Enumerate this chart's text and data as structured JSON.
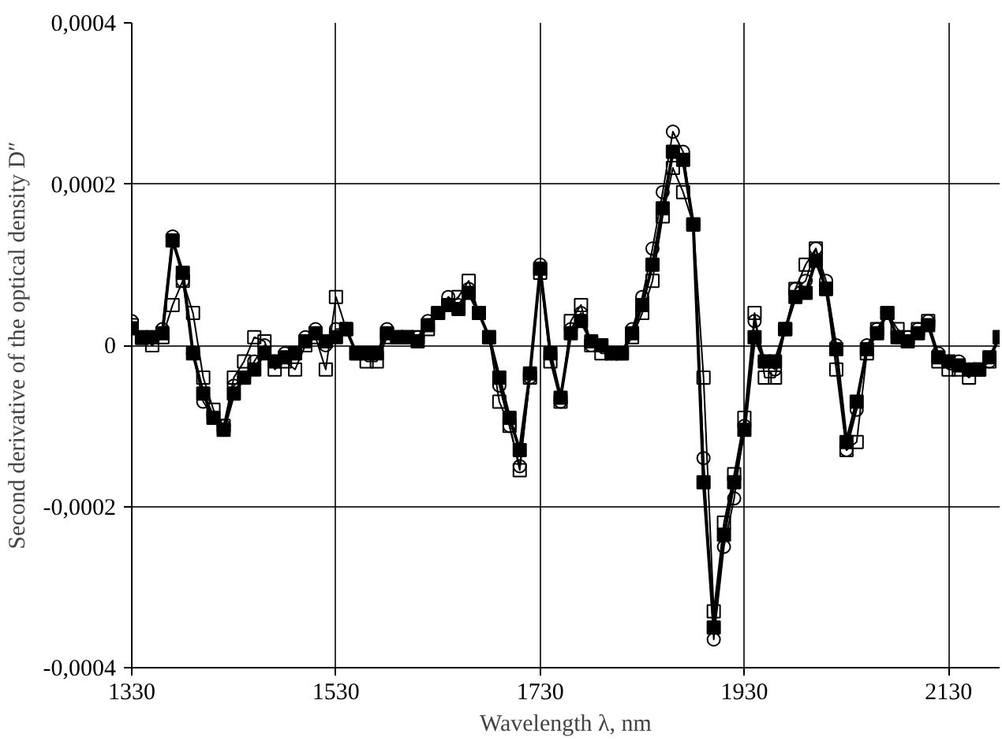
{
  "chart_data": {
    "type": "line",
    "xlabel": "Wavelength λ, nm",
    "ylabel": "Second derivative of the optical density D″",
    "x": [
      1330,
      1340,
      1350,
      1360,
      1370,
      1380,
      1390,
      1400,
      1410,
      1420,
      1430,
      1440,
      1450,
      1460,
      1470,
      1480,
      1490,
      1500,
      1510,
      1520,
      1530,
      1540,
      1550,
      1560,
      1570,
      1580,
      1590,
      1600,
      1610,
      1620,
      1630,
      1640,
      1650,
      1660,
      1670,
      1680,
      1690,
      1700,
      1710,
      1720,
      1730,
      1740,
      1750,
      1760,
      1770,
      1780,
      1790,
      1800,
      1810,
      1820,
      1830,
      1840,
      1850,
      1860,
      1870,
      1880,
      1890,
      1900,
      1910,
      1920,
      1930,
      1940,
      1950,
      1960,
      1970,
      1980,
      1990,
      2000,
      2010,
      2020,
      2030,
      2040,
      2050,
      2060,
      2070,
      2080,
      2090,
      2100,
      2110,
      2120,
      2130,
      2140,
      2150,
      2160,
      2170,
      2180
    ],
    "series": [
      {
        "color": "#000000",
        "marker": "circle",
        "values": [
          3e-05,
          1e-05,
          1e-05,
          2e-05,
          0.000135,
          8e-05,
          -1e-05,
          -7e-05,
          -9e-05,
          -0.0001,
          -5e-05,
          -4e-05,
          -2e-05,
          0.0,
          -2e-05,
          -1e-05,
          -1e-05,
          1e-05,
          2e-05,
          0.0,
          2e-05,
          2e-05,
          -1e-05,
          -1e-05,
          -1e-05,
          2e-05,
          1e-05,
          1e-05,
          1e-05,
          3e-05,
          4e-05,
          6e-05,
          5e-05,
          7e-05,
          4e-05,
          1e-05,
          -5e-05,
          -0.0001,
          -0.00015,
          -4e-05,
          0.0001,
          -1e-05,
          -7e-05,
          2e-05,
          4e-05,
          0.0,
          0.0,
          -1e-05,
          -1e-05,
          2e-05,
          6e-05,
          0.00012,
          0.00019,
          0.000265,
          0.00024,
          0.00015,
          -0.00014,
          -0.000365,
          -0.00025,
          -0.00019,
          -0.0001,
          3e-05,
          -2e-05,
          -3e-05,
          2e-05,
          7e-05,
          8e-05,
          0.00012,
          8e-05,
          0.0,
          -0.00013,
          -8e-05,
          0.0,
          2e-05,
          4e-05,
          1e-05,
          1e-05,
          2e-05,
          3e-05,
          -1e-05,
          -2e-05,
          -2e-05,
          -3e-05,
          -3e-05,
          -2e-05,
          1e-05
        ]
      },
      {
        "color": "#000000",
        "marker": "square",
        "values": [
          2.5e-05,
          1e-05,
          0.0,
          1e-05,
          5e-05,
          8e-05,
          4e-05,
          -4e-05,
          -8e-05,
          -0.0001,
          -4e-05,
          -2e-05,
          1e-05,
          5e-06,
          -3e-05,
          -2e-05,
          -3e-05,
          0.0,
          1e-05,
          -3e-05,
          6e-05,
          2e-05,
          -1e-05,
          -2e-05,
          -2e-05,
          1e-05,
          1e-05,
          1e-05,
          1e-05,
          2e-05,
          4e-05,
          5e-05,
          6e-05,
          8e-05,
          4e-05,
          1e-05,
          -7e-05,
          -0.0001,
          -0.000155,
          -4e-05,
          9e-05,
          -2e-05,
          -7e-05,
          3e-05,
          5e-05,
          0.0,
          -1e-05,
          -1e-05,
          -1e-05,
          1e-05,
          4e-05,
          8e-05,
          0.00016,
          0.00022,
          0.00019,
          0.00015,
          -4e-05,
          -0.00033,
          -0.00022,
          -0.00016,
          -9e-05,
          4e-05,
          -4e-05,
          -4e-05,
          2e-05,
          7e-05,
          0.0001,
          0.00012,
          7e-05,
          -3e-05,
          -0.00013,
          -0.00012,
          -1e-05,
          2e-05,
          4e-05,
          2e-05,
          1e-05,
          2e-05,
          3e-05,
          -2e-05,
          -3e-05,
          -3e-05,
          -4e-05,
          -3e-05,
          -2e-05,
          1e-05
        ]
      },
      {
        "color": "#000000",
        "marker": "square_filled",
        "values": [
          2.1e-05,
          9e-06,
          1e-05,
          1.5e-05,
          0.00013,
          9e-05,
          -1e-05,
          -6e-05,
          -9e-05,
          -0.000105,
          -6e-05,
          -4e-05,
          -3e-05,
          -1e-05,
          -2e-05,
          -1.5e-05,
          -1e-05,
          5e-06,
          1.5e-05,
          5e-06,
          1e-05,
          2e-05,
          -1e-05,
          -1e-05,
          -1e-05,
          1.5e-05,
          1e-05,
          1e-05,
          5e-06,
          2.5e-05,
          4e-05,
          5e-05,
          4.5e-05,
          6.5e-05,
          4e-05,
          1e-05,
          -4e-05,
          -9e-05,
          -0.00013,
          -3.5e-05,
          9.5e-05,
          -1e-05,
          -6.5e-05,
          1.5e-05,
          3e-05,
          5e-06,
          0.0,
          -1e-05,
          -1e-05,
          1.5e-05,
          5e-05,
          0.0001,
          0.00017,
          0.00024,
          0.00023,
          0.00015,
          -0.00017,
          -0.00035,
          -0.000235,
          -0.00017,
          -0.000105,
          1e-05,
          -2e-05,
          -2e-05,
          2e-05,
          6e-05,
          6.5e-05,
          0.000105,
          7e-05,
          -5e-06,
          -0.00012,
          -7e-05,
          -5e-06,
          1.5e-05,
          4e-05,
          1e-05,
          5e-06,
          1.5e-05,
          2.5e-05,
          -1.5e-05,
          -2e-05,
          -2.5e-05,
          -3e-05,
          -3e-05,
          -1.5e-05,
          1e-05
        ]
      }
    ],
    "xlim": [
      1330,
      2180
    ],
    "xticks": [
      1330,
      1530,
      1730,
      1930,
      2130
    ],
    "ylim": [
      -0.0004,
      0.0004
    ],
    "yticks": [
      {
        "value": -0.0004,
        "label": "-0,0004"
      },
      {
        "value": -0.0002,
        "label": "-0,0002"
      },
      {
        "value": 0,
        "label": "0"
      },
      {
        "value": 0.0002,
        "label": "0,0002"
      },
      {
        "value": 0.0004,
        "label": "0,0004"
      }
    ],
    "grid": true,
    "line_style": "solid"
  }
}
